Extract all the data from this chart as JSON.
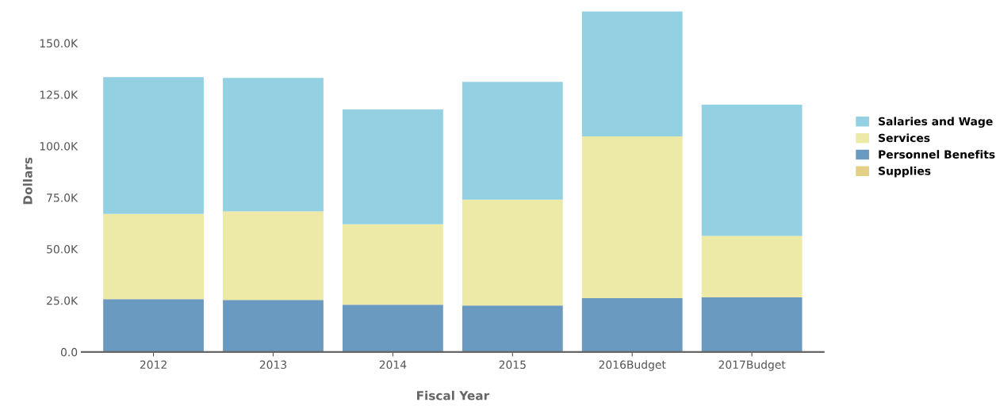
{
  "chart_data": {
    "type": "bar",
    "stacked": true,
    "xlabel": "Fiscal Year",
    "ylabel": "Dollars",
    "categories": [
      "2012",
      "2013",
      "2014",
      "2015",
      "2016Budget",
      "2017Budget"
    ],
    "series": [
      {
        "name": "Supplies",
        "color": "#e3cf86",
        "values": [
          0,
          0,
          0,
          0,
          0,
          0
        ]
      },
      {
        "name": "Personnel Benefits",
        "color": "#6b9ac0",
        "values": [
          25700,
          25300,
          23000,
          22600,
          26100,
          26500
        ]
      },
      {
        "name": "Services",
        "color": "#ede9a6",
        "values": [
          41400,
          43000,
          39100,
          51400,
          78600,
          29900
        ]
      },
      {
        "name": "Salaries and Wage",
        "color": "#92d0e2",
        "values": [
          66400,
          64800,
          55700,
          57200,
          60600,
          63700
        ]
      }
    ],
    "ylim": [
      0,
      166000
    ],
    "yticks": [
      {
        "value": 0,
        "label": "0.0"
      },
      {
        "value": 25000,
        "label": "25.0K"
      },
      {
        "value": 50000,
        "label": "50.0K"
      },
      {
        "value": 75000,
        "label": "75.0K"
      },
      {
        "value": 100000,
        "label": "100.0K"
      },
      {
        "value": 125000,
        "label": "125.0K"
      },
      {
        "value": 150000,
        "label": "150.0K"
      }
    ],
    "grid": false,
    "legend": "right"
  }
}
